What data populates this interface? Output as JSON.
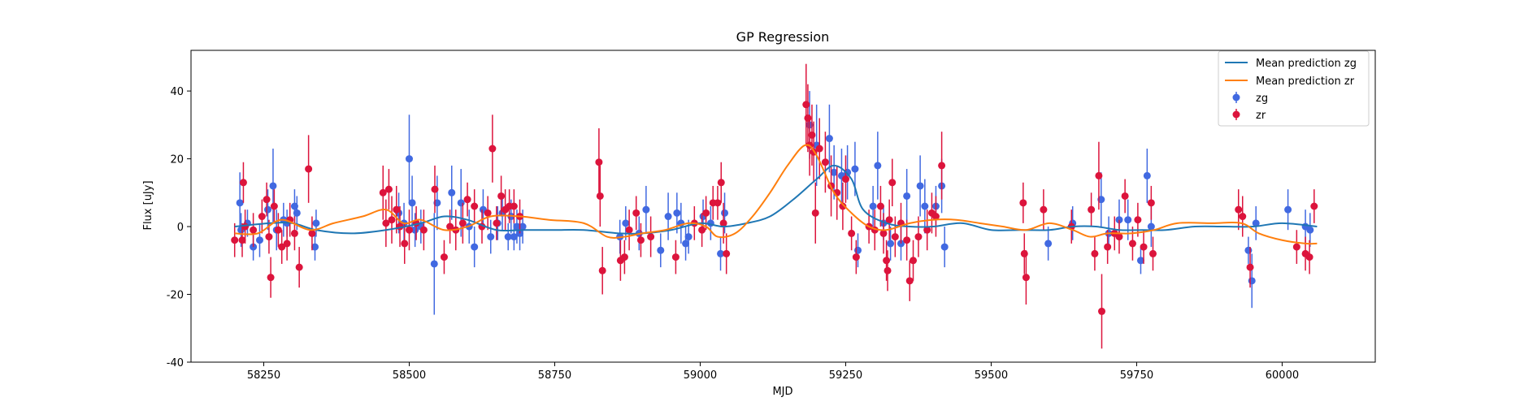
{
  "chart_data": {
    "type": "scatter",
    "title": "GP Regression",
    "xlabel": "MJD",
    "ylabel": "Flux [uJy]",
    "xlim": [
      58125,
      60160
    ],
    "ylim": [
      -40,
      52
    ],
    "xticks": [
      58250,
      58500,
      58750,
      59000,
      59250,
      59500,
      59750,
      60000
    ],
    "yticks": [
      -40,
      -20,
      0,
      20,
      40
    ],
    "legend_position": "top-right",
    "colors": {
      "zg_line": "#1f77b4",
      "zr_line": "#ff7f0e",
      "zg_points": "#4169e1",
      "zr_points": "#dc143c"
    },
    "lines": [
      {
        "name": "Mean prediction zg",
        "x": [
          58200,
          58260,
          58300,
          58340,
          58400,
          58460,
          58520,
          58560,
          58600,
          58650,
          58700,
          58750,
          58800,
          58860,
          58900,
          58950,
          59000,
          59040,
          59080,
          59120,
          59160,
          59200,
          59230,
          59260,
          59280,
          59320,
          59360,
          59400,
          59450,
          59500,
          59550,
          59600,
          59640,
          59680,
          59720,
          59760,
          59800,
          59850,
          59900,
          59950,
          60000,
          60060
        ],
        "y": [
          0,
          1,
          1,
          -1,
          -2,
          -1,
          1,
          3,
          2,
          -1,
          -1,
          -1,
          -1,
          -2,
          -2,
          -1,
          1,
          0,
          1,
          3,
          8,
          14,
          18,
          14,
          5,
          1,
          0,
          0,
          1,
          -1,
          -1,
          -1,
          0,
          0,
          -1,
          -1,
          -1,
          0,
          0,
          0,
          1,
          0
        ]
      },
      {
        "name": "Mean prediction zr",
        "x": [
          58200,
          58240,
          58280,
          58330,
          58370,
          58420,
          58460,
          58490,
          58520,
          58560,
          58600,
          58640,
          58690,
          58740,
          58800,
          58840,
          58870,
          58900,
          58940,
          58980,
          59010,
          59030,
          59060,
          59090,
          59120,
          59150,
          59180,
          59200,
          59230,
          59260,
          59290,
          59320,
          59360,
          59400,
          59440,
          59480,
          59520,
          59560,
          59600,
          59640,
          59670,
          59700,
          59740,
          59780,
          59820,
          59880,
          59930,
          59960,
          60000,
          60040,
          60060
        ],
        "y": [
          -2,
          -2,
          2,
          -1,
          1,
          3,
          5,
          1,
          2,
          -1,
          0,
          3,
          3,
          2,
          1,
          -3,
          -3,
          -2,
          -1,
          1,
          0,
          -3,
          -2,
          3,
          10,
          18,
          24,
          21,
          10,
          4,
          0,
          -1,
          1,
          2,
          2,
          1,
          0,
          -1,
          1,
          -1,
          -3,
          -2,
          -2,
          -1,
          1,
          1,
          1,
          -2,
          -4,
          -5,
          -5
        ]
      }
    ],
    "series": [
      {
        "name": "zg",
        "points": [
          [
            58209,
            7,
            9
          ],
          [
            58211,
            -1,
            5
          ],
          [
            58222,
            1,
            4
          ],
          [
            58232,
            -6,
            4
          ],
          [
            58243,
            -4,
            5
          ],
          [
            58257,
            5,
            6
          ],
          [
            58266,
            12,
            11
          ],
          [
            58272,
            -1,
            6
          ],
          [
            58284,
            2,
            5
          ],
          [
            58290,
            1,
            4
          ],
          [
            58303,
            6,
            5
          ],
          [
            58307,
            4,
            5
          ],
          [
            58338,
            -6,
            4
          ],
          [
            58340,
            1,
            4
          ],
          [
            58482,
            4,
            6
          ],
          [
            58491,
            1,
            6
          ],
          [
            58500,
            20,
            13
          ],
          [
            58505,
            7,
            8
          ],
          [
            58510,
            -1,
            5
          ],
          [
            58520,
            0,
            5
          ],
          [
            58543,
            -11,
            15
          ],
          [
            58548,
            7,
            8
          ],
          [
            58573,
            10,
            8
          ],
          [
            58589,
            7,
            10
          ],
          [
            58603,
            0,
            5
          ],
          [
            58612,
            -6,
            6
          ],
          [
            58627,
            5,
            6
          ],
          [
            58640,
            -3,
            5
          ],
          [
            58652,
            1,
            5
          ],
          [
            58660,
            4,
            5
          ],
          [
            58670,
            -3,
            4
          ],
          [
            58675,
            3,
            5
          ],
          [
            58680,
            -3,
            4
          ],
          [
            58685,
            0,
            5
          ],
          [
            58690,
            -2,
            5
          ],
          [
            58695,
            0,
            5
          ],
          [
            58862,
            -3,
            5
          ],
          [
            58872,
            1,
            5
          ],
          [
            58895,
            -2,
            5
          ],
          [
            58907,
            5,
            7
          ],
          [
            58932,
            -7,
            5
          ],
          [
            58945,
            3,
            7
          ],
          [
            58960,
            4,
            6
          ],
          [
            58967,
            1,
            6
          ],
          [
            58975,
            -5,
            5
          ],
          [
            58980,
            -3,
            5
          ],
          [
            59005,
            3,
            5
          ],
          [
            59018,
            1,
            5
          ],
          [
            59035,
            -8,
            5
          ],
          [
            59042,
            4,
            6
          ],
          [
            59188,
            30,
            10
          ],
          [
            59200,
            24,
            12
          ],
          [
            59222,
            26,
            10
          ],
          [
            59230,
            16,
            8
          ],
          [
            59243,
            15,
            8
          ],
          [
            59253,
            16,
            8
          ],
          [
            59266,
            17,
            8
          ],
          [
            59271,
            -7,
            5
          ],
          [
            59297,
            6,
            6
          ],
          [
            59305,
            18,
            10
          ],
          [
            59315,
            1,
            5
          ],
          [
            59327,
            -5,
            5
          ],
          [
            59345,
            -5,
            5
          ],
          [
            59355,
            9,
            8
          ],
          [
            59378,
            12,
            9
          ],
          [
            59386,
            6,
            8
          ],
          [
            59405,
            6,
            6
          ],
          [
            59415,
            12,
            8
          ],
          [
            59420,
            -6,
            6
          ],
          [
            59598,
            -5,
            5
          ],
          [
            59640,
            1,
            5
          ],
          [
            59689,
            8,
            8
          ],
          [
            59702,
            -2,
            5
          ],
          [
            59720,
            2,
            6
          ],
          [
            59735,
            2,
            6
          ],
          [
            59757,
            -10,
            4
          ],
          [
            59768,
            15,
            8
          ],
          [
            59775,
            0,
            6
          ],
          [
            59942,
            -7,
            4
          ],
          [
            59948,
            -16,
            8
          ],
          [
            59955,
            1,
            5
          ],
          [
            60010,
            5,
            6
          ],
          [
            60040,
            0,
            5
          ],
          [
            60048,
            -1,
            5
          ]
        ]
      },
      {
        "name": "zr",
        "points": [
          [
            58200,
            -4,
            5
          ],
          [
            58213,
            -4,
            5
          ],
          [
            58215,
            13,
            6
          ],
          [
            58218,
            0,
            5
          ],
          [
            58232,
            -1,
            5
          ],
          [
            58247,
            3,
            5
          ],
          [
            58255,
            8,
            5
          ],
          [
            58259,
            -3,
            5
          ],
          [
            58262,
            -15,
            6
          ],
          [
            58268,
            6,
            5
          ],
          [
            58275,
            -1,
            5
          ],
          [
            58281,
            -6,
            5
          ],
          [
            58290,
            -5,
            5
          ],
          [
            58295,
            2,
            5
          ],
          [
            58303,
            -2,
            5
          ],
          [
            58311,
            -12,
            6
          ],
          [
            58327,
            17,
            10
          ],
          [
            58333,
            -2,
            5
          ],
          [
            58455,
            10,
            8
          ],
          [
            58460,
            1,
            7
          ],
          [
            58465,
            11,
            6
          ],
          [
            58470,
            2,
            7
          ],
          [
            58478,
            5,
            7
          ],
          [
            58484,
            0,
            6
          ],
          [
            58492,
            -5,
            6
          ],
          [
            58500,
            -1,
            6
          ],
          [
            58512,
            1,
            5
          ],
          [
            58525,
            -1,
            6
          ],
          [
            58544,
            11,
            7
          ],
          [
            58560,
            -9,
            5
          ],
          [
            58570,
            0,
            5
          ],
          [
            58580,
            -1,
            6
          ],
          [
            58592,
            1,
            6
          ],
          [
            58600,
            8,
            5
          ],
          [
            58612,
            6,
            5
          ],
          [
            58625,
            0,
            5
          ],
          [
            58635,
            4,
            5
          ],
          [
            58643,
            23,
            10
          ],
          [
            58650,
            1,
            5
          ],
          [
            58658,
            9,
            6
          ],
          [
            58665,
            5,
            6
          ],
          [
            58672,
            6,
            5
          ],
          [
            58680,
            6,
            5
          ],
          [
            58690,
            3,
            5
          ],
          [
            58826,
            19,
            10
          ],
          [
            58828,
            9,
            9
          ],
          [
            58832,
            -13,
            7
          ],
          [
            58863,
            -10,
            6
          ],
          [
            58870,
            -9,
            5
          ],
          [
            58878,
            -1,
            6
          ],
          [
            58890,
            4,
            5
          ],
          [
            58898,
            -4,
            5
          ],
          [
            58915,
            -3,
            6
          ],
          [
            58958,
            -9,
            5
          ],
          [
            58990,
            1,
            5
          ],
          [
            59003,
            -1,
            5
          ],
          [
            59010,
            4,
            5
          ],
          [
            59022,
            7,
            5
          ],
          [
            59030,
            7,
            5
          ],
          [
            59036,
            13,
            6
          ],
          [
            59040,
            1,
            6
          ],
          [
            59045,
            -8,
            6
          ],
          [
            59182,
            36,
            12
          ],
          [
            59185,
            32,
            10
          ],
          [
            59188,
            24,
            9
          ],
          [
            59192,
            27,
            9
          ],
          [
            59195,
            22,
            9
          ],
          [
            59198,
            4,
            9
          ],
          [
            59205,
            23,
            9
          ],
          [
            59215,
            19,
            9
          ],
          [
            59225,
            12,
            9
          ],
          [
            59235,
            10,
            8
          ],
          [
            59245,
            6,
            7
          ],
          [
            59250,
            14,
            7
          ],
          [
            59260,
            -2,
            5
          ],
          [
            59268,
            -9,
            5
          ],
          [
            59290,
            0,
            5
          ],
          [
            59300,
            -1,
            6
          ],
          [
            59310,
            6,
            6
          ],
          [
            59315,
            -2,
            6
          ],
          [
            59320,
            -10,
            6
          ],
          [
            59322,
            -13,
            6
          ],
          [
            59325,
            2,
            6
          ],
          [
            59330,
            13,
            7
          ],
          [
            59335,
            -3,
            6
          ],
          [
            59345,
            1,
            6
          ],
          [
            59355,
            -4,
            6
          ],
          [
            59360,
            -16,
            6
          ],
          [
            59366,
            -10,
            6
          ],
          [
            59375,
            -3,
            6
          ],
          [
            59390,
            -1,
            6
          ],
          [
            59398,
            4,
            6
          ],
          [
            59405,
            3,
            6
          ],
          [
            59415,
            18,
            10
          ],
          [
            59555,
            7,
            6
          ],
          [
            59557,
            -8,
            6
          ],
          [
            59560,
            -15,
            8
          ],
          [
            59590,
            5,
            6
          ],
          [
            59638,
            0,
            5
          ],
          [
            59672,
            5,
            5
          ],
          [
            59678,
            -8,
            5
          ],
          [
            59685,
            15,
            10
          ],
          [
            59690,
            -25,
            11
          ],
          [
            59700,
            -6,
            5
          ],
          [
            59712,
            -2,
            5
          ],
          [
            59720,
            -3,
            5
          ],
          [
            59730,
            9,
            5
          ],
          [
            59743,
            -5,
            5
          ],
          [
            59752,
            2,
            5
          ],
          [
            59762,
            -6,
            5
          ],
          [
            59775,
            7,
            5
          ],
          [
            59778,
            -8,
            5
          ],
          [
            59925,
            5,
            6
          ],
          [
            59932,
            3,
            6
          ],
          [
            59945,
            -12,
            6
          ],
          [
            60025,
            -6,
            5
          ],
          [
            60040,
            -8,
            5
          ],
          [
            60047,
            -9,
            5
          ],
          [
            60055,
            6,
            5
          ]
        ]
      }
    ]
  }
}
